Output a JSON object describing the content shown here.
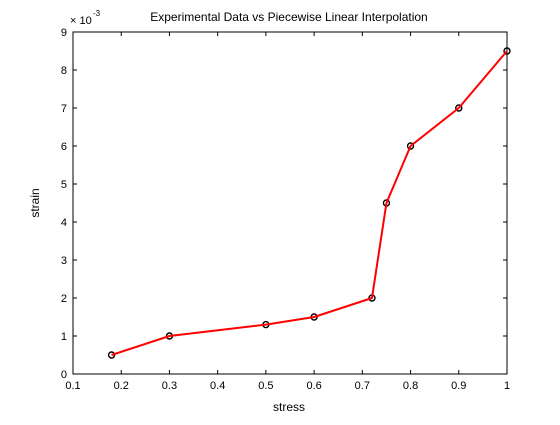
{
  "chart_data": {
    "type": "line",
    "title": "Experimental Data vs Piecewise Linear Interpolation",
    "xlabel": "stress",
    "ylabel": "strain",
    "y_multiplier": {
      "base": "× 10",
      "exponent": "-3"
    },
    "xlim": [
      0.1,
      1.0
    ],
    "ylim": [
      0,
      9
    ],
    "x_ticks": [
      "0.1",
      "0.2",
      "0.3",
      "0.4",
      "0.5",
      "0.6",
      "0.7",
      "0.8",
      "0.9",
      "1"
    ],
    "y_ticks": [
      "0",
      "1",
      "2",
      "3",
      "4",
      "5",
      "6",
      "7",
      "8",
      "9"
    ],
    "grid": false,
    "legend": "none",
    "series": [
      {
        "style": "markers",
        "color": "#000000",
        "x": [
          0.18,
          0.3,
          0.5,
          0.6,
          0.72,
          0.75,
          0.8,
          0.9,
          1.0
        ],
        "y": [
          0.5,
          1.0,
          1.3,
          1.5,
          2.0,
          4.5,
          6.0,
          7.0,
          8.5
        ]
      },
      {
        "style": "line",
        "color": "#ff0000",
        "x": [
          0.18,
          0.3,
          0.5,
          0.6,
          0.72,
          0.75,
          0.8,
          0.9,
          1.0
        ],
        "y": [
          0.5,
          1.0,
          1.3,
          1.5,
          2.0,
          4.5,
          6.0,
          7.0,
          8.5
        ]
      }
    ]
  }
}
